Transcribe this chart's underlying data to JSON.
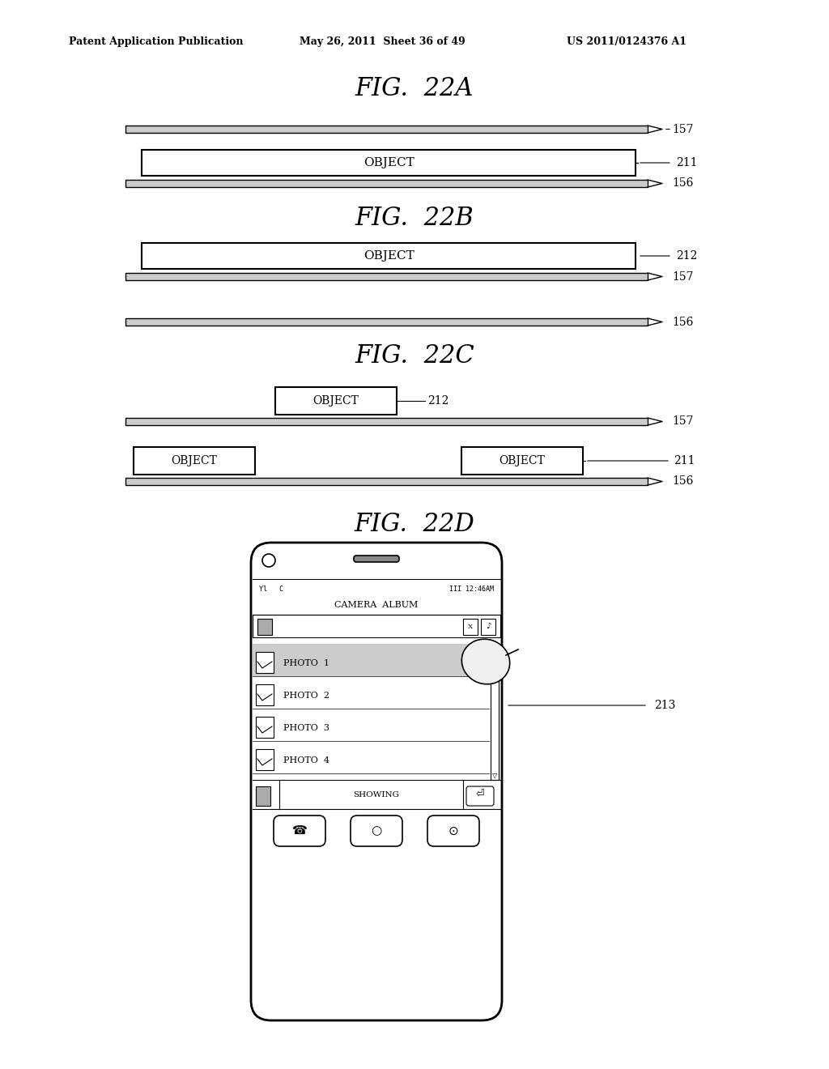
{
  "bg_color": "#ffffff",
  "header_left": "Patent Application Publication",
  "header_mid": "May 26, 2011  Sheet 36 of 49",
  "header_right": "US 2011/0124376 A1",
  "fig_22a_title": "FIG.  22A",
  "fig_22b_title": "FIG.  22B",
  "fig_22c_title": "FIG.  22C",
  "fig_22d_title": "FIG.  22D",
  "label_157_22a": "157",
  "label_211_22a": "211",
  "label_156_22a": "156",
  "label_212_22b": "212",
  "label_157_22b": "157",
  "label_156_22b": "156",
  "label_212_22c": "212",
  "label_157_22c": "157",
  "label_211_22c": "211",
  "label_156_22c": "156",
  "label_213": "213"
}
